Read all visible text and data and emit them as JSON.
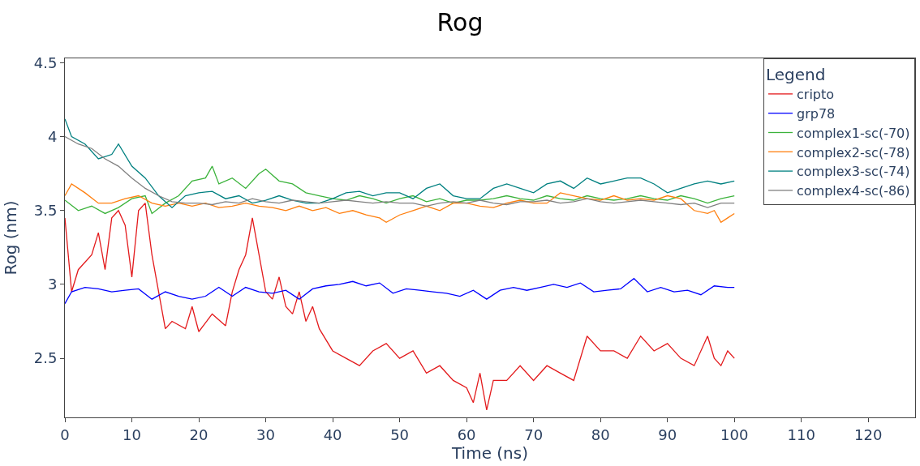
{
  "chart_data": {
    "type": "line",
    "title": "Rog",
    "xlabel": "Time (ns)",
    "ylabel": "Rog (nm)",
    "legend_title": "Legend",
    "legend": "top right",
    "grid": false,
    "xlim": [
      0,
      127
    ],
    "xticks": [
      0,
      10,
      20,
      30,
      40,
      50,
      60,
      70,
      80,
      90,
      100,
      110,
      120
    ],
    "ylim": [
      2.1,
      4.53
    ],
    "yticks": [
      2.5,
      3,
      3.5,
      4,
      4.5
    ],
    "series": [
      {
        "name": "cripto",
        "color": "#e31a1c",
        "x": [
          0,
          1,
          2,
          4,
          5,
          6,
          7,
          8,
          9,
          10,
          11,
          12,
          13,
          14,
          15,
          16,
          18,
          19,
          20,
          22,
          24,
          25,
          26,
          27,
          28,
          29,
          30,
          31,
          32,
          33,
          34,
          35,
          36,
          37,
          38,
          40,
          42,
          44,
          46,
          48,
          50,
          52,
          54,
          56,
          58,
          60,
          61,
          62,
          63,
          64,
          66,
          68,
          70,
          72,
          74,
          76,
          78,
          80,
          82,
          84,
          86,
          88,
          90,
          92,
          94,
          96,
          97,
          98,
          99,
          100
        ],
        "values": [
          3.45,
          2.95,
          3.1,
          3.2,
          3.35,
          3.1,
          3.45,
          3.5,
          3.4,
          3.05,
          3.5,
          3.55,
          3.2,
          2.95,
          2.7,
          2.75,
          2.7,
          2.85,
          2.68,
          2.8,
          2.72,
          2.95,
          3.1,
          3.2,
          3.45,
          3.2,
          2.95,
          2.9,
          3.05,
          2.85,
          2.8,
          2.95,
          2.75,
          2.85,
          2.7,
          2.55,
          2.5,
          2.45,
          2.55,
          2.6,
          2.5,
          2.55,
          2.4,
          2.45,
          2.35,
          2.3,
          2.2,
          2.4,
          2.15,
          2.35,
          2.35,
          2.45,
          2.35,
          2.45,
          2.4,
          2.35,
          2.65,
          2.55,
          2.55,
          2.5,
          2.65,
          2.55,
          2.6,
          2.5,
          2.45,
          2.65,
          2.5,
          2.45,
          2.55,
          2.5
        ]
      },
      {
        "name": "grp78",
        "color": "#0000ff",
        "x": [
          0,
          1,
          3,
          5,
          7,
          9,
          11,
          13,
          15,
          17,
          19,
          21,
          23,
          25,
          27,
          29,
          31,
          33,
          35,
          37,
          39,
          41,
          43,
          45,
          47,
          49,
          51,
          53,
          55,
          57,
          59,
          61,
          63,
          65,
          67,
          69,
          71,
          73,
          75,
          77,
          79,
          81,
          83,
          85,
          87,
          89,
          91,
          93,
          95,
          97,
          99,
          100
        ],
        "values": [
          2.87,
          2.95,
          2.98,
          2.97,
          2.95,
          2.96,
          2.97,
          2.9,
          2.95,
          2.92,
          2.9,
          2.92,
          2.98,
          2.92,
          2.98,
          2.95,
          2.94,
          2.96,
          2.9,
          2.97,
          2.99,
          3.0,
          3.02,
          2.99,
          3.01,
          2.94,
          2.97,
          2.96,
          2.95,
          2.94,
          2.92,
          2.96,
          2.9,
          2.96,
          2.98,
          2.96,
          2.98,
          3.0,
          2.98,
          3.01,
          2.95,
          2.96,
          2.97,
          3.04,
          2.95,
          2.98,
          2.95,
          2.96,
          2.93,
          2.99,
          2.98,
          2.98
        ]
      },
      {
        "name": "complex1-sc(-70)",
        "color": "#3cb33c",
        "x": [
          0,
          2,
          4,
          6,
          8,
          10,
          12,
          13,
          15,
          17,
          19,
          21,
          22,
          23,
          25,
          27,
          29,
          30,
          32,
          34,
          36,
          38,
          40,
          42,
          44,
          46,
          48,
          50,
          52,
          54,
          56,
          58,
          60,
          62,
          64,
          66,
          68,
          70,
          72,
          74,
          76,
          78,
          80,
          82,
          84,
          86,
          88,
          90,
          92,
          94,
          96,
          98,
          100
        ],
        "values": [
          3.57,
          3.5,
          3.53,
          3.48,
          3.52,
          3.58,
          3.6,
          3.48,
          3.55,
          3.6,
          3.7,
          3.72,
          3.8,
          3.68,
          3.72,
          3.65,
          3.75,
          3.78,
          3.7,
          3.68,
          3.62,
          3.6,
          3.58,
          3.57,
          3.6,
          3.58,
          3.55,
          3.58,
          3.6,
          3.56,
          3.58,
          3.55,
          3.57,
          3.57,
          3.58,
          3.6,
          3.58,
          3.57,
          3.6,
          3.58,
          3.57,
          3.6,
          3.58,
          3.57,
          3.58,
          3.6,
          3.58,
          3.57,
          3.6,
          3.58,
          3.55,
          3.58,
          3.6
        ]
      },
      {
        "name": "complex2-sc(-78)",
        "color": "#ff7f0e",
        "x": [
          0,
          1,
          3,
          5,
          7,
          9,
          11,
          13,
          15,
          17,
          19,
          21,
          23,
          25,
          27,
          29,
          31,
          33,
          35,
          37,
          39,
          41,
          43,
          45,
          47,
          48,
          50,
          52,
          54,
          56,
          58,
          60,
          62,
          64,
          66,
          68,
          70,
          72,
          74,
          76,
          78,
          80,
          82,
          84,
          86,
          88,
          90,
          92,
          94,
          96,
          97,
          98,
          99,
          100
        ],
        "values": [
          3.6,
          3.68,
          3.62,
          3.55,
          3.55,
          3.58,
          3.6,
          3.55,
          3.53,
          3.55,
          3.53,
          3.55,
          3.52,
          3.53,
          3.55,
          3.53,
          3.52,
          3.5,
          3.53,
          3.5,
          3.52,
          3.48,
          3.5,
          3.47,
          3.45,
          3.42,
          3.47,
          3.5,
          3.53,
          3.5,
          3.55,
          3.55,
          3.53,
          3.52,
          3.55,
          3.57,
          3.55,
          3.55,
          3.62,
          3.6,
          3.58,
          3.57,
          3.6,
          3.57,
          3.58,
          3.57,
          3.6,
          3.58,
          3.5,
          3.48,
          3.5,
          3.42,
          3.45,
          3.48
        ]
      },
      {
        "name": "complex3-sc(-74)",
        "color": "#008080",
        "x": [
          0,
          1,
          3,
          5,
          7,
          8,
          10,
          12,
          14,
          16,
          18,
          20,
          22,
          24,
          26,
          28,
          30,
          32,
          34,
          36,
          38,
          40,
          42,
          44,
          46,
          48,
          50,
          52,
          54,
          56,
          58,
          60,
          62,
          64,
          66,
          68,
          70,
          72,
          74,
          76,
          78,
          80,
          82,
          84,
          86,
          88,
          90,
          92,
          94,
          96,
          98,
          100
        ],
        "values": [
          4.12,
          4.0,
          3.95,
          3.85,
          3.88,
          3.95,
          3.8,
          3.72,
          3.6,
          3.52,
          3.6,
          3.62,
          3.63,
          3.58,
          3.6,
          3.55,
          3.57,
          3.6,
          3.57,
          3.55,
          3.55,
          3.58,
          3.62,
          3.63,
          3.6,
          3.62,
          3.62,
          3.58,
          3.65,
          3.68,
          3.6,
          3.58,
          3.58,
          3.65,
          3.68,
          3.65,
          3.62,
          3.68,
          3.7,
          3.65,
          3.72,
          3.68,
          3.7,
          3.72,
          3.72,
          3.68,
          3.62,
          3.65,
          3.68,
          3.7,
          3.68,
          3.7
        ]
      },
      {
        "name": "complex4-sc(-86)",
        "color": "#808080",
        "x": [
          0,
          2,
          4,
          6,
          8,
          10,
          12,
          14,
          16,
          18,
          20,
          22,
          24,
          26,
          28,
          30,
          32,
          34,
          36,
          38,
          40,
          42,
          44,
          46,
          48,
          50,
          52,
          54,
          56,
          58,
          60,
          62,
          64,
          66,
          68,
          70,
          72,
          74,
          76,
          78,
          80,
          82,
          84,
          86,
          88,
          90,
          92,
          94,
          96,
          98,
          100
        ],
        "values": [
          4.0,
          3.95,
          3.92,
          3.85,
          3.8,
          3.72,
          3.65,
          3.6,
          3.56,
          3.55,
          3.55,
          3.54,
          3.56,
          3.55,
          3.58,
          3.56,
          3.55,
          3.57,
          3.56,
          3.55,
          3.56,
          3.57,
          3.56,
          3.55,
          3.56,
          3.55,
          3.55,
          3.53,
          3.55,
          3.56,
          3.55,
          3.57,
          3.55,
          3.54,
          3.56,
          3.56,
          3.57,
          3.55,
          3.56,
          3.58,
          3.56,
          3.55,
          3.56,
          3.57,
          3.56,
          3.55,
          3.54,
          3.55,
          3.52,
          3.55,
          3.55
        ]
      }
    ]
  }
}
